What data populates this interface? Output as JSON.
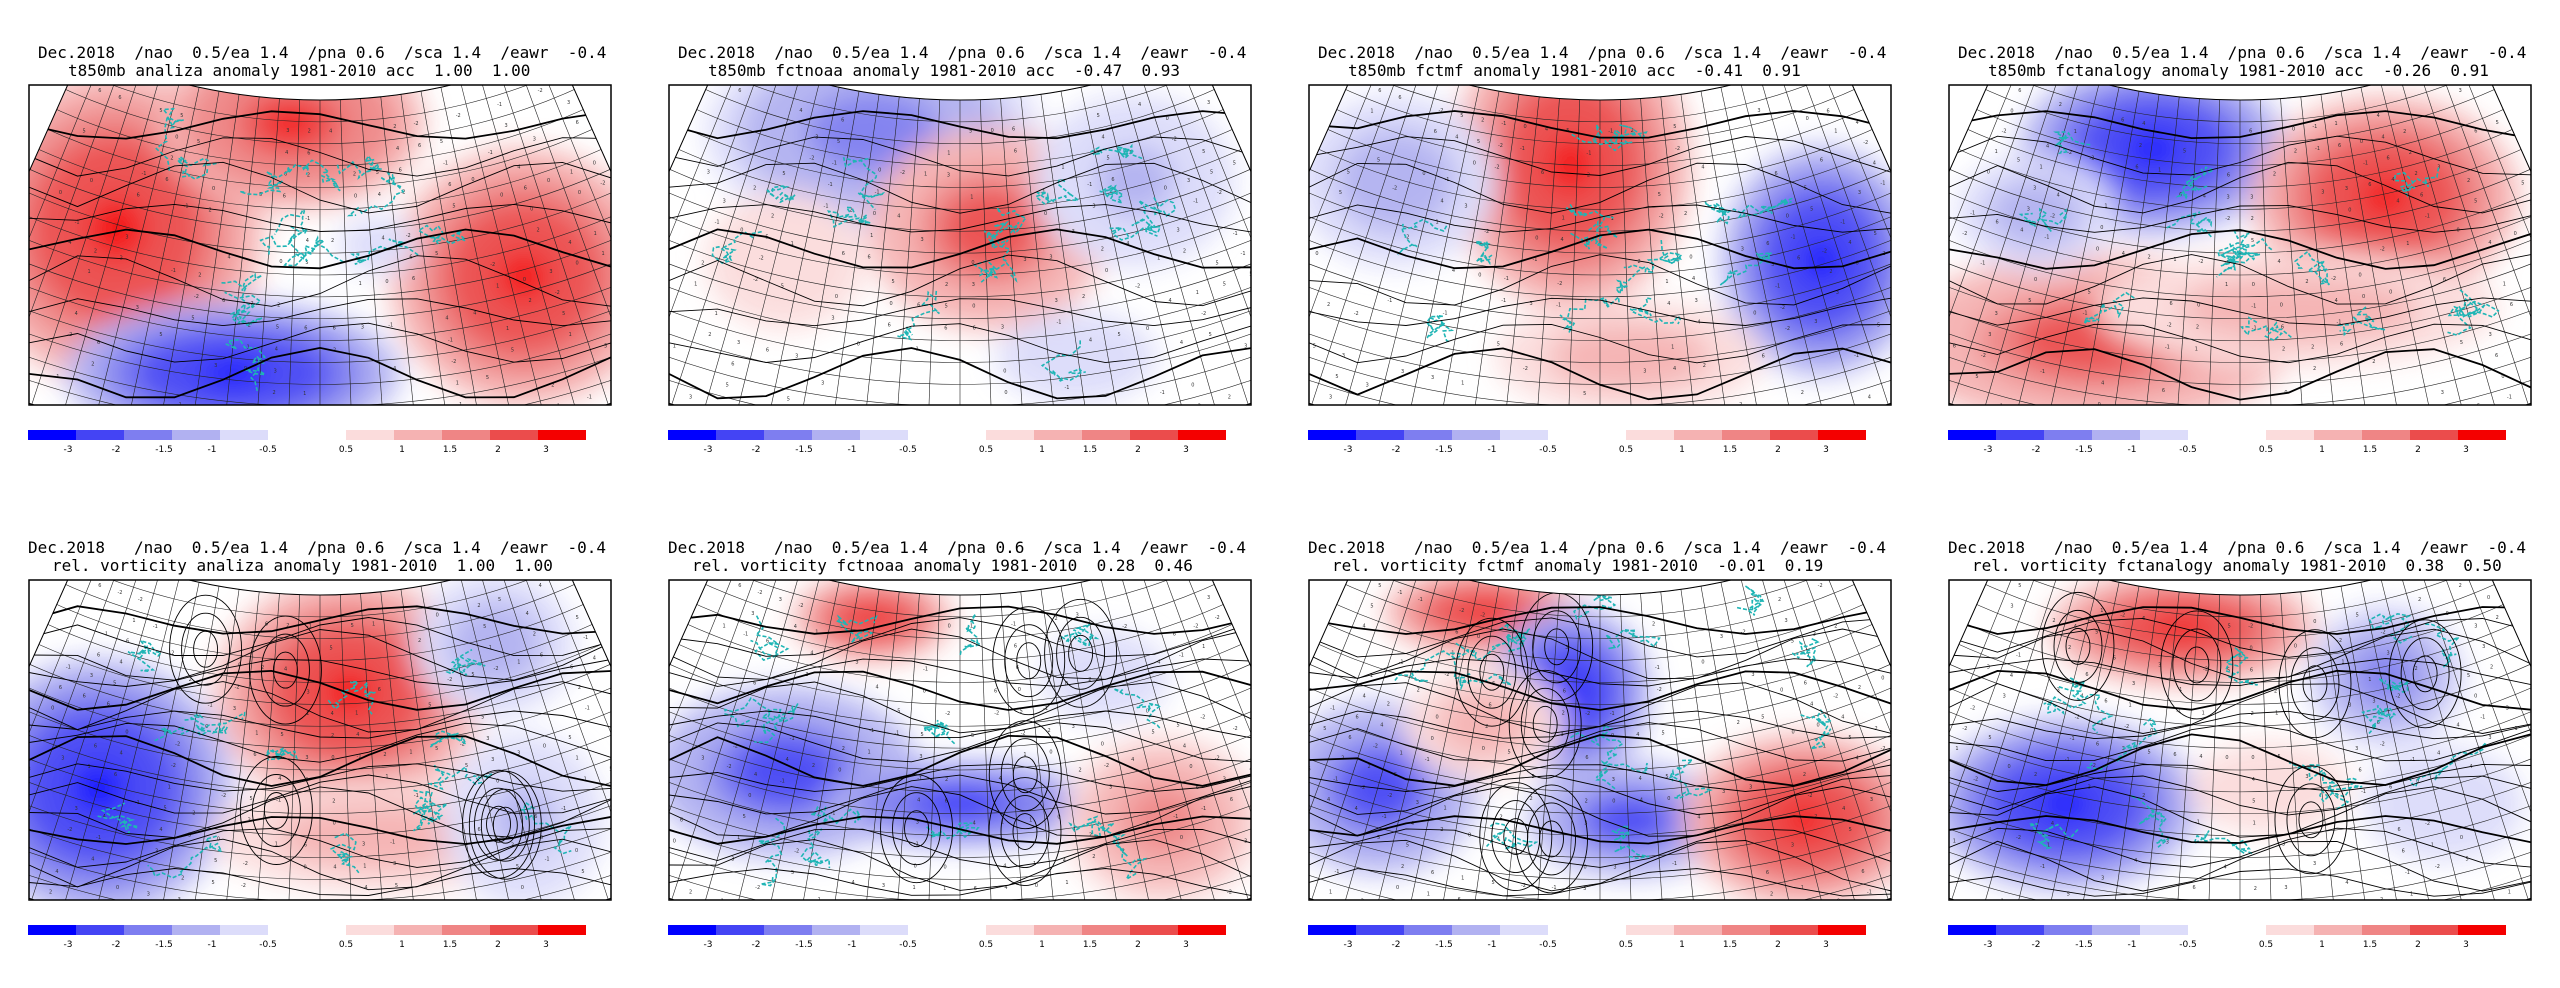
{
  "colorbar": {
    "neg_labels": [
      "-3",
      "-2",
      "-1.5",
      "-1",
      "-0.5"
    ],
    "pos_labels": [
      "0.5",
      "1",
      "1.5",
      "2",
      "3"
    ],
    "neg_colors": [
      "#0000ff",
      "#4444f4",
      "#7e7ef0",
      "#b1b1f1",
      "#dcdcfa"
    ],
    "pos_colors": [
      "#fbdcdc",
      "#f5b2b2",
      "#ef8585",
      "#eb4c4c",
      "#f40000"
    ]
  },
  "panels": [
    {
      "line1": "Dec.2018  /nao  0.5/ea 1.4  /pna 0.6  /sca 1.4  /eawr  -0.4",
      "line2": "t850mb analiza anomaly 1981-2010 acc  1.00  1.00",
      "row": 0,
      "col": 0,
      "layout": "t"
    },
    {
      "line1": "Dec.2018  /nao  0.5/ea 1.4  /pna 0.6  /sca 1.4  /eawr  -0.4",
      "line2": "t850mb fctnoaa anomaly 1981-2010 acc  -0.47  0.93",
      "row": 0,
      "col": 1,
      "layout": "t"
    },
    {
      "line1": "Dec.2018  /nao  0.5/ea 1.4  /pna 0.6  /sca 1.4  /eawr  -0.4",
      "line2": "t850mb fctmf anomaly 1981-2010 acc  -0.41  0.91",
      "row": 0,
      "col": 2,
      "layout": "t"
    },
    {
      "line1": "Dec.2018  /nao  0.5/ea 1.4  /pna 0.6  /sca 1.4  /eawr  -0.4",
      "line2": "t850mb fctanalogy anomaly 1981-2010 acc  -0.26  0.91",
      "row": 0,
      "col": 3,
      "layout": "t"
    },
    {
      "line1": "Dec.2018   /nao  0.5/ea 1.4  /pna 0.6  /sca 1.4  /eawr  -0.4",
      "line2": "rel. vorticity analiza anomaly 1981-2010  1.00  1.00",
      "row": 1,
      "col": 0,
      "layout": "v"
    },
    {
      "line1": "Dec.2018   /nao  0.5/ea 1.4  /pna 0.6  /sca 1.4  /eawr  -0.4",
      "line2": "rel. vorticity fctnoaa anomaly 1981-2010  0.28  0.46",
      "row": 1,
      "col": 1,
      "layout": "v"
    },
    {
      "line1": "Dec.2018   /nao  0.5/ea 1.4  /pna 0.6  /sca 1.4  /eawr  -0.4",
      "line2": "rel. vorticity fctmf anomaly 1981-2010  -0.01  0.19",
      "row": 1,
      "col": 2,
      "layout": "v"
    },
    {
      "line1": "Dec.2018   /nao  0.5/ea 1.4  /pna 0.6  /sca 1.4  /eawr  -0.4",
      "line2": "rel. vorticity fctanalogy anomaly 1981-2010  0.38  0.50",
      "row": 1,
      "col": 3,
      "layout": "v"
    }
  ]
}
